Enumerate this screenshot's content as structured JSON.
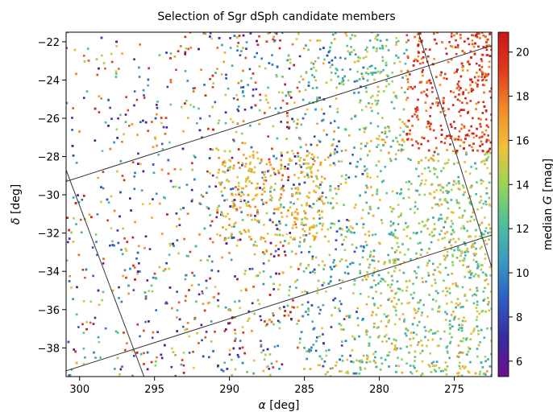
{
  "chart_data": {
    "type": "scatter",
    "title": "Selection of Sgr dSph candidate members",
    "xlabel_symbol": "α",
    "xlabel_unit": "[deg]",
    "ylabel_symbol": "δ",
    "ylabel_unit": "[deg]",
    "xlim": [
      300.9,
      272.5
    ],
    "ylim": [
      -39.5,
      -21.5
    ],
    "x_inverted": true,
    "x_ticks": [
      300,
      295,
      290,
      285,
      280,
      275
    ],
    "x_tick_labels": [
      "300",
      "295",
      "290",
      "285",
      "280",
      "275"
    ],
    "y_ticks": [
      -22,
      -24,
      -26,
      -28,
      -30,
      -32,
      -34,
      -36,
      -38
    ],
    "y_tick_labels": [
      "−22",
      "−24",
      "−26",
      "−28",
      "−30",
      "−32",
      "−34",
      "−36",
      "−38"
    ],
    "grid": false,
    "colorbar": {
      "label_prefix": "median",
      "label_symbol": "G",
      "label_unit": "[mag]",
      "range": [
        5.3,
        20.9
      ],
      "ticks": [
        6,
        8,
        10,
        12,
        14,
        16,
        18,
        20
      ],
      "tick_labels": [
        "6",
        "8",
        "10",
        "12",
        "14",
        "16",
        "18",
        "20"
      ],
      "colormap": "spectral-like",
      "colors": [
        "#6a0f8e",
        "#3b2a9e",
        "#2d5cc4",
        "#3a9ac0",
        "#4fbf9a",
        "#98d45a",
        "#f0c23a",
        "#f18a2a",
        "#e03a1f",
        "#c8161a"
      ]
    },
    "selection_lines": [
      {
        "x": [
          300.9,
          272.5
        ],
        "y": [
          -29.3,
          -22.2
        ]
      },
      {
        "x": [
          300.9,
          272.5
        ],
        "y": [
          -39.2,
          -32.1
        ]
      },
      {
        "x": [
          300.9,
          295.7
        ],
        "y": [
          -28.7,
          -39.5
        ]
      },
      {
        "x": [
          277.4,
          272.5
        ],
        "y": [
          -21.5,
          -33.8
        ]
      }
    ]
  },
  "colors": {
    "frame": "#000000",
    "line": "#333333"
  }
}
